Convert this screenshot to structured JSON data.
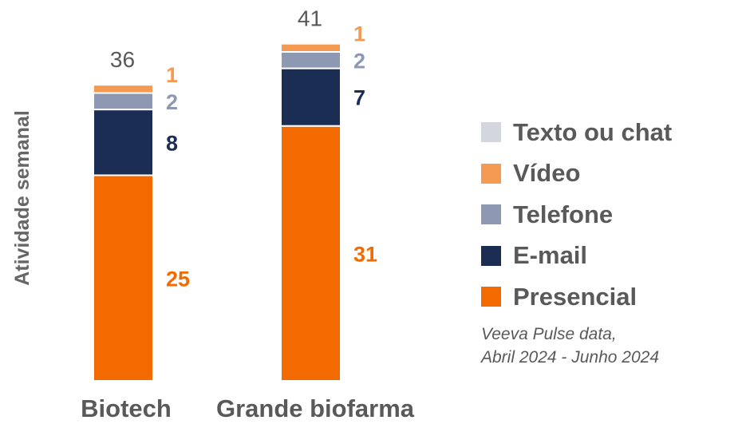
{
  "chart_data": {
    "type": "bar",
    "stacked": true,
    "ylabel": "Atividade semanal",
    "categories": [
      "Biotech",
      "Grande biofarma"
    ],
    "totals": [
      36,
      41
    ],
    "series": [
      {
        "name": "Presencial",
        "values": [
          25,
          31
        ],
        "color": "#F26A00",
        "label_color": "#F26A00"
      },
      {
        "name": "E-mail",
        "values": [
          8,
          7
        ],
        "color": "#1C2D54",
        "label_color": "#1C2D54"
      },
      {
        "name": "Telefone",
        "values": [
          2,
          2
        ],
        "color": "#8D99B3",
        "label_color": "#8D99B3"
      },
      {
        "name": "Vídeo",
        "values": [
          1,
          1
        ],
        "color": "#F59A52",
        "label_color": "#F59A52"
      },
      {
        "name": "Texto ou chat",
        "values": [
          0,
          0
        ],
        "color": "#D3D6DF",
        "label_color": "#D3D6DF"
      }
    ],
    "legend_order": [
      "Texto ou chat",
      "Vídeo",
      "Telefone",
      "E-mail",
      "Presencial"
    ],
    "legend_position": "right",
    "grid": false
  },
  "source": {
    "line1": "Veeva Pulse data,",
    "line2": "Abril 2024 - Junho 2024"
  }
}
